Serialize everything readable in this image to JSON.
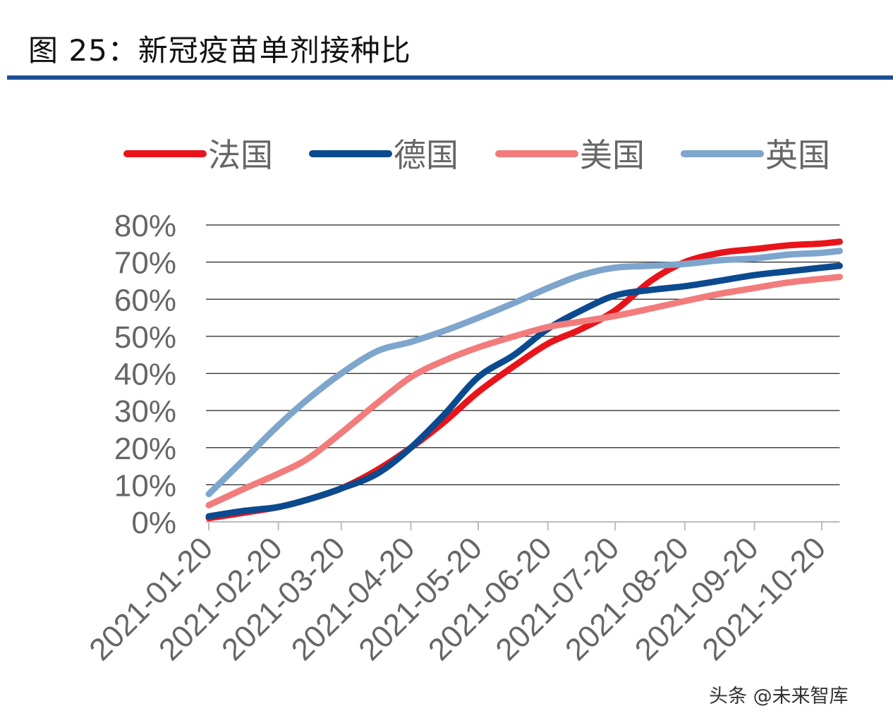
{
  "title": "图 25：新冠疫苗单剂接种比",
  "watermark": "头条 @未来智库",
  "chart_data": {
    "type": "line",
    "title": "",
    "xlabel": "",
    "ylabel": "",
    "ylim": [
      0,
      0.8
    ],
    "xlim": [
      "2021-01-20",
      "2021-10-28"
    ],
    "grid": true,
    "legend_position": "top",
    "yticks": [
      "0%",
      "10%",
      "20%",
      "30%",
      "40%",
      "50%",
      "60%",
      "70%",
      "80%"
    ],
    "xticks": [
      "2021-01-20",
      "2021-02-20",
      "2021-03-20",
      "2021-04-20",
      "2021-05-20",
      "2021-06-20",
      "2021-07-20",
      "2021-08-20",
      "2021-09-20",
      "2021-10-20"
    ],
    "x": [
      "2021-01-20",
      "2021-02-05",
      "2021-02-20",
      "2021-03-05",
      "2021-03-20",
      "2021-04-05",
      "2021-04-20",
      "2021-05-05",
      "2021-05-20",
      "2021-06-05",
      "2021-06-20",
      "2021-07-05",
      "2021-07-20",
      "2021-08-05",
      "2021-08-20",
      "2021-09-05",
      "2021-09-20",
      "2021-10-05",
      "2021-10-20",
      "2021-10-28"
    ],
    "series": [
      {
        "name": "法国",
        "color": "#e8141a",
        "values": [
          0.01,
          0.025,
          0.04,
          0.06,
          0.09,
          0.14,
          0.2,
          0.27,
          0.35,
          0.42,
          0.48,
          0.52,
          0.57,
          0.65,
          0.7,
          0.725,
          0.735,
          0.745,
          0.75,
          0.755
        ]
      },
      {
        "name": "德国",
        "color": "#0b4a8e",
        "values": [
          0.015,
          0.03,
          0.04,
          0.06,
          0.09,
          0.13,
          0.2,
          0.29,
          0.39,
          0.45,
          0.52,
          0.57,
          0.61,
          0.625,
          0.635,
          0.65,
          0.665,
          0.675,
          0.685,
          0.69
        ]
      },
      {
        "name": "美国",
        "color": "#f27c7c",
        "values": [
          0.045,
          0.09,
          0.13,
          0.17,
          0.24,
          0.32,
          0.39,
          0.435,
          0.47,
          0.5,
          0.525,
          0.54,
          0.555,
          0.575,
          0.595,
          0.615,
          0.63,
          0.645,
          0.655,
          0.66
        ]
      },
      {
        "name": "英国",
        "color": "#7ea5cc",
        "values": [
          0.075,
          0.17,
          0.26,
          0.33,
          0.4,
          0.46,
          0.485,
          0.515,
          0.55,
          0.59,
          0.63,
          0.665,
          0.685,
          0.69,
          0.695,
          0.705,
          0.71,
          0.72,
          0.725,
          0.73
        ]
      }
    ]
  }
}
